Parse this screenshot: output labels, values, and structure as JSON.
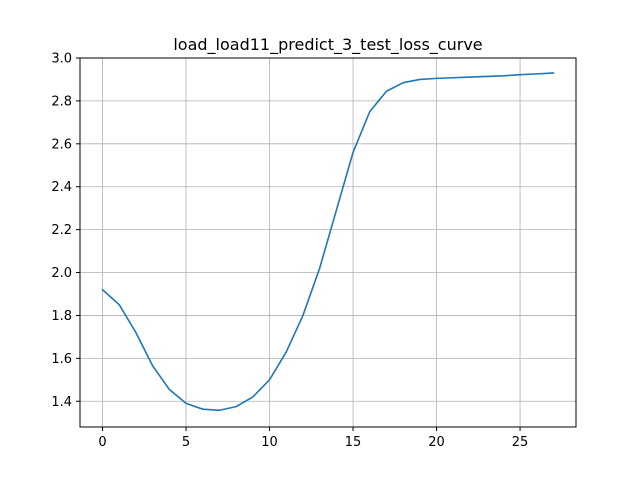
{
  "chart_data": {
    "type": "line",
    "title": "load_load11_predict_3_test_loss_curve",
    "xlabel": "",
    "ylabel": "",
    "xlim": [
      -1.35,
      28.35
    ],
    "ylim": [
      1.28,
      3.0
    ],
    "x_ticks": [
      0,
      5,
      10,
      15,
      20,
      25
    ],
    "x_tick_labels": [
      "0",
      "5",
      "10",
      "15",
      "20",
      "25"
    ],
    "y_ticks": [
      1.4,
      1.6,
      1.8,
      2.0,
      2.2,
      2.4,
      2.6,
      2.8,
      3.0
    ],
    "y_tick_labels": [
      "1.4",
      "1.6",
      "1.8",
      "2.0",
      "2.2",
      "2.4",
      "2.6",
      "2.8",
      "3.0"
    ],
    "grid": true,
    "series": [
      {
        "color": "#1f77b4",
        "x": [
          0,
          1,
          2,
          3,
          4,
          5,
          6,
          7,
          8,
          9,
          10,
          11,
          12,
          13,
          14,
          15,
          16,
          17,
          18,
          19,
          20,
          21,
          22,
          23,
          24,
          25,
          26,
          27
        ],
        "y": [
          1.92,
          1.85,
          1.72,
          1.565,
          1.455,
          1.39,
          1.363,
          1.358,
          1.375,
          1.42,
          1.5,
          1.63,
          1.8,
          2.02,
          2.29,
          2.56,
          2.75,
          2.845,
          2.885,
          2.9,
          2.905,
          2.908,
          2.911,
          2.914,
          2.917,
          2.922,
          2.926,
          2.93
        ]
      }
    ]
  }
}
